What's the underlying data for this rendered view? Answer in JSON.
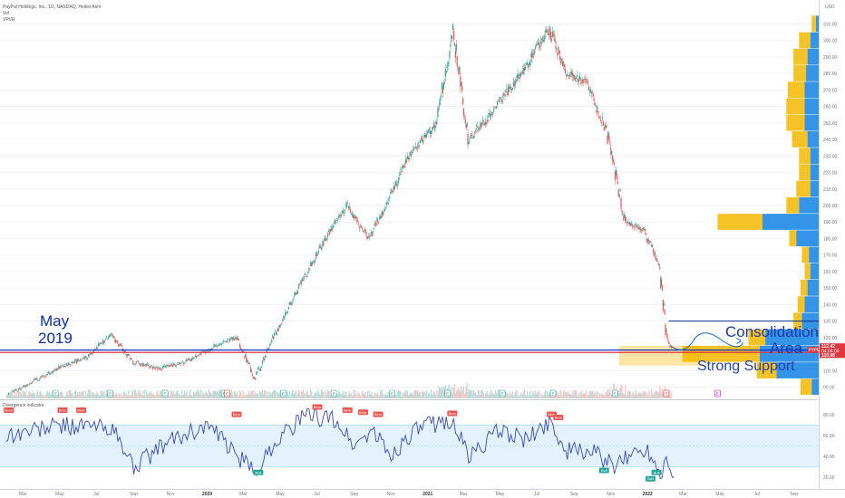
{
  "header": {
    "symbol_line": "PayPal Holdings, Inc., 1D, NASDAQ, Heikin Ashi",
    "vol_label": "Vol",
    "vpvr_label": "VPVR",
    "currency": "USD"
  },
  "indicator": {
    "title": "Divergence indicator",
    "ticks": [
      "80.00",
      "60.00",
      "40.00",
      "20.00"
    ],
    "bear_label": "Bear",
    "bull_label": "Bull"
  },
  "annotations": {
    "may_line1": "May",
    "may_line2": "2019",
    "consolidation_line1": "Consolidation",
    "consolidation_line2": "Area",
    "strong_support": "Strong Support"
  },
  "price_tags": {
    "ticker": "PYPL",
    "last": "112.42",
    "countdown": "04:04:00",
    "support": "110.98"
  },
  "chart_data": [
    {
      "type": "candlestick",
      "title": "PayPal Holdings, Inc., 1D, NASDAQ, Heikin Ashi",
      "ylim": [
        80,
        315
      ],
      "y_ticks": [
        90,
        100,
        110,
        120,
        130,
        140,
        150,
        160,
        170,
        180,
        190,
        200,
        210,
        220,
        230,
        240,
        250,
        260,
        270,
        280,
        290,
        300,
        310
      ],
      "x_ticks": [
        "Mar",
        "May",
        "Jul",
        "Sep",
        "Nov",
        "2020",
        "Mar",
        "May",
        "Jul",
        "Sep",
        "Nov",
        "2021",
        "Mar",
        "May",
        "Jul",
        "Sep",
        "Nov",
        "2022",
        "Mar",
        "May",
        "Jul",
        "Sep"
      ],
      "x": [
        "2019-02-01",
        "2019-04-01",
        "2019-05-01",
        "2019-06-15",
        "2019-07-25",
        "2019-09-01",
        "2019-10-15",
        "2019-12-01",
        "2020-01-15",
        "2020-02-20",
        "2020-03-20",
        "2020-04-20",
        "2020-06-01",
        "2020-07-15",
        "2020-08-20",
        "2020-09-25",
        "2020-10-30",
        "2020-12-01",
        "2021-01-15",
        "2021-02-12",
        "2021-03-10",
        "2021-04-15",
        "2021-05-15",
        "2021-06-15",
        "2021-07-20",
        "2021-08-20",
        "2021-09-20",
        "2021-10-25",
        "2021-11-25",
        "2021-12-25",
        "2022-01-20",
        "2022-02-01",
        "2022-02-10"
      ],
      "series": [
        {
          "values": [
            85,
            96,
            102,
            108,
            122,
            105,
            101,
            106,
            115,
            120,
            95,
            120,
            150,
            180,
            200,
            180,
            205,
            230,
            250,
            305,
            240,
            255,
            270,
            285,
            308,
            280,
            275,
            245,
            190,
            185,
            165,
            120,
            112.42
          ]
        }
      ],
      "horizontal_lines": [
        {
          "value": 130,
          "color": "#0b2d8a",
          "from": "2022-02-05"
        },
        {
          "value": 112.42,
          "color": "#1530c8"
        },
        {
          "value": 110.98,
          "color": "#e0383e"
        }
      ],
      "volume_profile": {
        "levels": [
          90,
          100,
          110,
          120,
          130,
          140,
          150,
          160,
          170,
          180,
          190,
          200,
          210,
          220,
          230,
          240,
          250,
          260,
          270,
          280,
          290,
          300,
          310
        ],
        "up_volume": [
          5,
          30,
          42,
          38,
          12,
          10,
          8,
          6,
          7,
          16,
          40,
          14,
          6,
          6,
          6,
          8,
          10,
          10,
          10,
          9,
          8,
          6,
          2
        ],
        "down_volume": [
          8,
          14,
          55,
          12,
          6,
          5,
          5,
          4,
          5,
          5,
          32,
          9,
          10,
          8,
          8,
          11,
          13,
          13,
          12,
          9,
          10,
          8,
          3
        ],
        "colors": {
          "up": "#1e88e5",
          "down": "#f5b800"
        }
      },
      "colors": {
        "up": "#26a69a",
        "down": "#ef5350"
      }
    },
    {
      "type": "line",
      "title": "Divergence indicator",
      "ylim": [
        10,
        90
      ],
      "x": [
        "2019-02-01",
        "2019-05-01",
        "2019-07-25",
        "2019-09-01",
        "2019-11-01",
        "2020-01-01",
        "2020-03-05",
        "2020-03-20",
        "2020-05-01",
        "2020-06-15",
        "2020-08-01",
        "2020-09-01",
        "2020-10-01",
        "2020-11-01",
        "2020-12-01",
        "2021-01-01",
        "2021-02-10",
        "2021-03-10",
        "2021-05-01",
        "2021-06-15",
        "2021-07-25",
        "2021-08-15",
        "2021-10-01",
        "2021-11-10",
        "2021-12-01",
        "2022-01-01",
        "2022-01-25",
        "2022-02-01",
        "2022-02-14"
      ],
      "series": [
        {
          "values": [
            60,
            70,
            68,
            30,
            55,
            70,
            32,
            25,
            60,
            80,
            75,
            50,
            65,
            40,
            60,
            70,
            75,
            40,
            65,
            55,
            75,
            45,
            45,
            28,
            42,
            47,
            22,
            45,
            20
          ]
        }
      ],
      "bands": [
        30,
        50,
        70
      ]
    }
  ]
}
